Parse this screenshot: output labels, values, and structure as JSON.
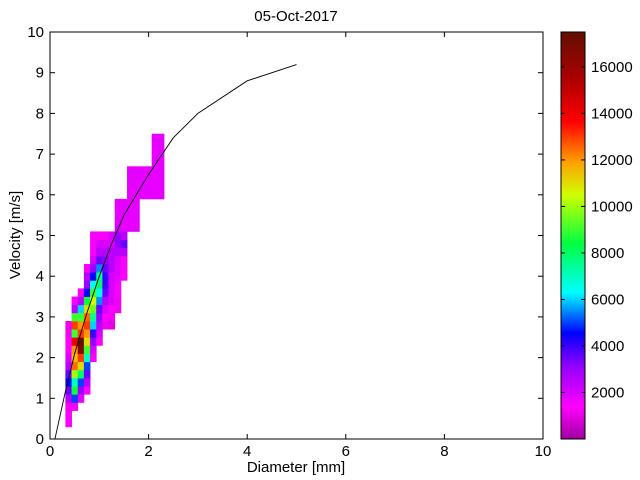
{
  "chart_data": {
    "type": "heatmap",
    "title": "05-Oct-2017",
    "xlabel": "Diameter [mm]",
    "ylabel": "Velocity [m/s]",
    "xlim": [
      0,
      10
    ],
    "ylim": [
      0,
      10
    ],
    "xticks": [
      "0",
      "2",
      "4",
      "6",
      "8",
      "10"
    ],
    "yticks": [
      "0",
      "1",
      "2",
      "3",
      "4",
      "5",
      "6",
      "7",
      "8",
      "9",
      "10"
    ],
    "colormap": "hsv (magenta-blue-cyan-green-yellow-red-darkred)",
    "colorbar": {
      "range": [
        0,
        17500
      ],
      "ticks": [
        "2000",
        "4000",
        "6000",
        "8000",
        "10000",
        "12000",
        "14000",
        "16000"
      ]
    },
    "bin_size": {
      "diameter_mm": 0.125,
      "velocity_ms": 0.2
    },
    "cells": [
      [
        0.375,
        0.4,
        1500
      ],
      [
        0.375,
        0.6,
        1500
      ],
      [
        0.375,
        0.8,
        1200
      ],
      [
        0.375,
        1.0,
        2500
      ],
      [
        0.375,
        1.2,
        3500
      ],
      [
        0.375,
        1.4,
        4500
      ],
      [
        0.375,
        1.6,
        3500
      ],
      [
        0.375,
        1.8,
        2500
      ],
      [
        0.375,
        2.0,
        2000
      ],
      [
        0.375,
        2.2,
        1500
      ],
      [
        0.375,
        2.4,
        1500
      ],
      [
        0.375,
        2.6,
        1200
      ],
      [
        0.375,
        2.8,
        1200
      ],
      [
        0.5,
        0.8,
        1500
      ],
      [
        0.5,
        1.0,
        5000
      ],
      [
        0.5,
        1.2,
        8500
      ],
      [
        0.5,
        1.4,
        7000
      ],
      [
        0.5,
        1.6,
        10000
      ],
      [
        0.5,
        1.8,
        12500
      ],
      [
        0.5,
        2.0,
        11500
      ],
      [
        0.5,
        2.2,
        12000
      ],
      [
        0.5,
        2.4,
        14000
      ],
      [
        0.5,
        2.6,
        9000
      ],
      [
        0.5,
        2.8,
        13000
      ],
      [
        0.5,
        3.0,
        9000
      ],
      [
        0.5,
        3.2,
        2500
      ],
      [
        0.5,
        3.4,
        1500
      ],
      [
        0.625,
        1.0,
        1800
      ],
      [
        0.625,
        1.2,
        3000
      ],
      [
        0.625,
        1.4,
        5000
      ],
      [
        0.625,
        1.6,
        8000
      ],
      [
        0.625,
        1.8,
        11000
      ],
      [
        0.625,
        2.0,
        13000
      ],
      [
        0.625,
        2.2,
        16500
      ],
      [
        0.625,
        2.4,
        17500
      ],
      [
        0.625,
        2.6,
        13000
      ],
      [
        0.625,
        2.8,
        12000
      ],
      [
        0.625,
        3.0,
        9000
      ],
      [
        0.625,
        3.2,
        6000
      ],
      [
        0.625,
        3.4,
        2500
      ],
      [
        0.625,
        3.6,
        1500
      ],
      [
        0.75,
        1.2,
        1500
      ],
      [
        0.75,
        1.4,
        2500
      ],
      [
        0.75,
        1.6,
        3500
      ],
      [
        0.75,
        1.8,
        5000
      ],
      [
        0.75,
        2.0,
        7000
      ],
      [
        0.75,
        2.2,
        9000
      ],
      [
        0.75,
        2.4,
        11000
      ],
      [
        0.75,
        2.6,
        12000
      ],
      [
        0.75,
        2.8,
        13000
      ],
      [
        0.75,
        3.0,
        12500
      ],
      [
        0.75,
        3.2,
        11000
      ],
      [
        0.75,
        3.4,
        8500
      ],
      [
        0.75,
        3.6,
        4500
      ],
      [
        0.75,
        3.8,
        3000
      ],
      [
        0.75,
        4.0,
        2500
      ],
      [
        0.75,
        4.2,
        1500
      ],
      [
        0.875,
        2.0,
        1500
      ],
      [
        0.875,
        2.2,
        2000
      ],
      [
        0.875,
        2.4,
        3000
      ],
      [
        0.875,
        2.6,
        4000
      ],
      [
        0.875,
        2.8,
        6000
      ],
      [
        0.875,
        3.0,
        7500
      ],
      [
        0.875,
        3.2,
        9500
      ],
      [
        0.875,
        3.4,
        10500
      ],
      [
        0.875,
        3.6,
        9000
      ],
      [
        0.875,
        3.8,
        6500
      ],
      [
        0.875,
        4.0,
        4500
      ],
      [
        0.875,
        4.2,
        3000
      ],
      [
        0.875,
        4.4,
        2000
      ],
      [
        0.875,
        4.6,
        1500
      ],
      [
        0.875,
        4.8,
        1500
      ],
      [
        0.875,
        5.0,
        1500
      ],
      [
        1.0,
        2.4,
        1500
      ],
      [
        1.0,
        2.6,
        2000
      ],
      [
        1.0,
        2.8,
        2500
      ],
      [
        1.0,
        3.0,
        3000
      ],
      [
        1.0,
        3.2,
        3500
      ],
      [
        1.0,
        3.4,
        5500
      ],
      [
        1.0,
        3.6,
        6500
      ],
      [
        1.0,
        3.8,
        8000
      ],
      [
        1.0,
        4.0,
        7500
      ],
      [
        1.0,
        4.2,
        5500
      ],
      [
        1.0,
        4.4,
        3500
      ],
      [
        1.0,
        4.6,
        2500
      ],
      [
        1.0,
        4.8,
        2000
      ],
      [
        1.0,
        5.0,
        1500
      ],
      [
        1.125,
        2.8,
        1200
      ],
      [
        1.125,
        3.0,
        1500
      ],
      [
        1.125,
        3.2,
        2000
      ],
      [
        1.125,
        3.4,
        2500
      ],
      [
        1.125,
        3.6,
        3500
      ],
      [
        1.125,
        3.8,
        4000
      ],
      [
        1.125,
        4.0,
        4000
      ],
      [
        1.125,
        4.2,
        3500
      ],
      [
        1.125,
        4.4,
        3000
      ],
      [
        1.125,
        4.6,
        2500
      ],
      [
        1.125,
        4.8,
        2000
      ],
      [
        1.125,
        5.0,
        1500
      ],
      [
        1.25,
        2.8,
        1000
      ],
      [
        1.25,
        3.0,
        1200
      ],
      [
        1.25,
        3.2,
        1500
      ],
      [
        1.25,
        3.4,
        2000
      ],
      [
        1.25,
        3.6,
        2000
      ],
      [
        1.25,
        3.8,
        2000
      ],
      [
        1.25,
        4.0,
        2000
      ],
      [
        1.25,
        4.2,
        2500
      ],
      [
        1.25,
        4.4,
        2500
      ],
      [
        1.25,
        4.6,
        2500
      ],
      [
        1.25,
        4.8,
        2000
      ],
      [
        1.25,
        5.0,
        2000
      ],
      [
        1.375,
        3.2,
        1200
      ],
      [
        1.375,
        3.4,
        1200
      ],
      [
        1.375,
        3.6,
        1500
      ],
      [
        1.375,
        3.8,
        1500
      ],
      [
        1.375,
        4.0,
        1800
      ],
      [
        1.375,
        4.2,
        1800
      ],
      [
        1.375,
        4.4,
        2000
      ],
      [
        1.375,
        4.6,
        2500
      ],
      [
        1.375,
        4.8,
        3000
      ],
      [
        1.375,
        5.0,
        3000
      ],
      [
        1.375,
        5.2,
        2000
      ],
      [
        1.375,
        5.4,
        1800
      ],
      [
        1.375,
        5.6,
        1800
      ],
      [
        1.375,
        5.8,
        1800
      ],
      [
        1.5,
        4.0,
        1500
      ],
      [
        1.5,
        4.2,
        1500
      ],
      [
        1.5,
        4.4,
        1500
      ],
      [
        1.5,
        4.6,
        2500
      ],
      [
        1.5,
        4.8,
        3500
      ],
      [
        1.5,
        5.0,
        2500
      ],
      [
        1.5,
        5.2,
        1800
      ],
      [
        1.5,
        5.4,
        1800
      ],
      [
        1.5,
        5.6,
        1800
      ],
      [
        1.5,
        5.8,
        1800
      ],
      [
        1.625,
        5.2,
        1800
      ],
      [
        1.625,
        5.4,
        1800
      ],
      [
        1.625,
        5.6,
        1800
      ],
      [
        1.625,
        5.8,
        1800
      ],
      [
        1.625,
        6.0,
        1800
      ],
      [
        1.625,
        6.2,
        1800
      ],
      [
        1.625,
        6.4,
        1800
      ],
      [
        1.625,
        6.6,
        1800
      ],
      [
        1.75,
        5.2,
        1800
      ],
      [
        1.75,
        5.4,
        1800
      ],
      [
        1.75,
        5.6,
        1800
      ],
      [
        1.75,
        5.8,
        1800
      ],
      [
        1.75,
        6.0,
        1800
      ],
      [
        1.75,
        6.2,
        1800
      ],
      [
        1.75,
        6.4,
        1800
      ],
      [
        1.75,
        6.6,
        1800
      ],
      [
        1.875,
        6.0,
        1800
      ],
      [
        1.875,
        6.2,
        1800
      ],
      [
        1.875,
        6.4,
        1800
      ],
      [
        1.875,
        6.6,
        1800
      ],
      [
        2.0,
        6.0,
        1800
      ],
      [
        2.0,
        6.2,
        1800
      ],
      [
        2.0,
        6.4,
        1800
      ],
      [
        2.0,
        6.6,
        1800
      ],
      [
        2.125,
        6.0,
        1800
      ],
      [
        2.125,
        6.2,
        1800
      ],
      [
        2.125,
        6.4,
        1800
      ],
      [
        2.125,
        6.6,
        1800
      ],
      [
        2.125,
        6.8,
        1800
      ],
      [
        2.125,
        7.0,
        1800
      ],
      [
        2.125,
        7.2,
        1800
      ],
      [
        2.125,
        7.4,
        1800
      ],
      [
        2.25,
        6.0,
        1800
      ],
      [
        2.25,
        6.2,
        1800
      ],
      [
        2.25,
        6.4,
        1800
      ],
      [
        2.25,
        6.6,
        1800
      ],
      [
        2.25,
        6.8,
        1800
      ],
      [
        2.25,
        7.0,
        1800
      ],
      [
        2.25,
        7.2,
        1800
      ],
      [
        2.25,
        7.4,
        1800
      ]
    ],
    "line": {
      "x": [
        0.1,
        0.3,
        0.5,
        0.75,
        1.0,
        1.25,
        1.5,
        2.0,
        2.5,
        3.0,
        4.0,
        5.0
      ],
      "y": [
        0.0,
        1.1,
        2.1,
        3.1,
        4.0,
        4.8,
        5.5,
        6.5,
        7.4,
        8.0,
        8.8,
        9.2
      ]
    }
  }
}
